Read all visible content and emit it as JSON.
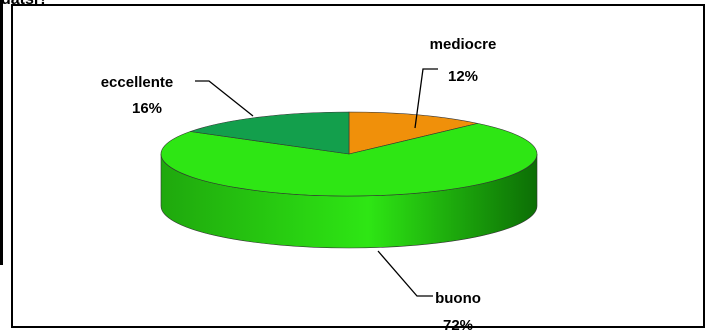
{
  "header": {
    "cut_text": "datsi?"
  },
  "chart_data": {
    "type": "pie",
    "style": "3d",
    "title": "",
    "categories": [
      "mediocre",
      "buono",
      "eccellente"
    ],
    "values": [
      12,
      72,
      16
    ],
    "labels": [
      "mediocre\n12%",
      "buono\n72%",
      "eccellente\n16%"
    ],
    "label_names": [
      "mediocre",
      "buono",
      "eccellente"
    ],
    "label_values": [
      "12%",
      "72%",
      "16%"
    ],
    "colors": [
      "#f0900a",
      "#2ee614",
      "#139f4c"
    ],
    "side_colors": [
      "#b86a05",
      "#1fa80d",
      "#0e7436"
    ],
    "legend": "none",
    "grid": false
  }
}
